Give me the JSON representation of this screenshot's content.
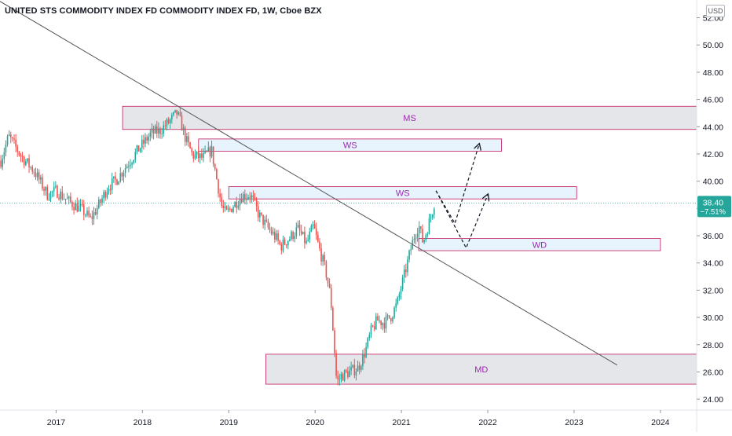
{
  "header": {
    "title": "UNITED STS COMMODITY INDEX FD COMMODITY INDEX FD, 1W, Cboe BZX",
    "currency": "USD"
  },
  "chart_data": {
    "type": "candlestick",
    "interval": "1W",
    "exchange": "Cboe BZX",
    "xlabels": [
      "2017",
      "2018",
      "2019",
      "2020",
      "2021",
      "2022",
      "2023",
      "2024"
    ],
    "ylabels": [
      "24.00",
      "26.00",
      "28.00",
      "30.00",
      "32.00",
      "34.00",
      "36.00",
      "38.00",
      "40.00",
      "42.00",
      "44.00",
      "46.00",
      "48.00",
      "50.00",
      "52.00"
    ],
    "ylim": [
      23.2,
      53.3
    ],
    "xlim": [
      2016.35,
      2024.42
    ],
    "last_price": {
      "value": 38.4,
      "label": "38.40",
      "change": "−7.51%"
    },
    "series": [
      {
        "price_path": [
          [
            2016.36,
            41.5
          ],
          [
            2016.45,
            43.3
          ],
          [
            2016.6,
            41.8
          ],
          [
            2016.75,
            40.7
          ],
          [
            2016.9,
            39.0
          ],
          [
            2017.0,
            39.3
          ],
          [
            2017.15,
            38.5
          ],
          [
            2017.3,
            37.9
          ],
          [
            2017.4,
            37.2
          ],
          [
            2017.5,
            38.3
          ],
          [
            2017.6,
            39.6
          ],
          [
            2017.7,
            40.1
          ],
          [
            2017.8,
            41.0
          ],
          [
            2017.95,
            42.3
          ],
          [
            2018.1,
            43.5
          ],
          [
            2018.2,
            43.7
          ],
          [
            2018.3,
            44.3
          ],
          [
            2018.4,
            45.0
          ],
          [
            2018.45,
            44.2
          ],
          [
            2018.5,
            43.1
          ],
          [
            2018.58,
            41.9
          ],
          [
            2018.7,
            41.7
          ],
          [
            2018.8,
            42.3
          ],
          [
            2018.85,
            40.5
          ],
          [
            2018.92,
            38.1
          ],
          [
            2018.97,
            37.6
          ],
          [
            2019.05,
            38.2
          ],
          [
            2019.15,
            38.9
          ],
          [
            2019.25,
            39.0
          ],
          [
            2019.3,
            38.3
          ],
          [
            2019.35,
            37.5
          ],
          [
            2019.45,
            36.6
          ],
          [
            2019.55,
            35.8
          ],
          [
            2019.6,
            35.2
          ],
          [
            2019.7,
            35.8
          ],
          [
            2019.8,
            36.5
          ],
          [
            2019.9,
            35.4
          ],
          [
            2019.98,
            36.7
          ],
          [
            2020.05,
            35.0
          ],
          [
            2020.12,
            33.5
          ],
          [
            2020.18,
            31.5
          ],
          [
            2020.22,
            28.0
          ],
          [
            2020.25,
            25.2
          ],
          [
            2020.3,
            25.7
          ],
          [
            2020.4,
            26.0
          ],
          [
            2020.5,
            26.3
          ],
          [
            2020.58,
            27.5
          ],
          [
            2020.65,
            29.0
          ],
          [
            2020.72,
            29.8
          ],
          [
            2020.8,
            29.6
          ],
          [
            2020.88,
            30.1
          ],
          [
            2020.95,
            31.0
          ],
          [
            2021.0,
            32.3
          ],
          [
            2021.05,
            33.5
          ],
          [
            2021.1,
            34.8
          ],
          [
            2021.15,
            36.0
          ],
          [
            2021.2,
            36.8
          ],
          [
            2021.25,
            35.5
          ],
          [
            2021.3,
            36.5
          ],
          [
            2021.35,
            37.6
          ],
          [
            2021.38,
            38.4
          ]
        ]
      }
    ],
    "trendline": {
      "from": [
        2016.35,
        53.2
      ],
      "to": [
        2023.5,
        26.5
      ]
    },
    "zones": [
      {
        "label": "MS",
        "x1": 2017.77,
        "x2": 2024.42,
        "y1": 43.8,
        "y2": 45.5,
        "fill": "#e1e2e6",
        "stroke": "#c2185b"
      },
      {
        "label": "WS",
        "x1": 2018.65,
        "x2": 2022.16,
        "y1": 42.2,
        "y2": 43.1,
        "fill": "#e3f2fd",
        "stroke": "#c2185b"
      },
      {
        "label": "WS",
        "x1": 2019.0,
        "x2": 2023.03,
        "y1": 38.7,
        "y2": 39.6,
        "fill": "#e3f2fd",
        "stroke": "#c2185b"
      },
      {
        "label": "WD",
        "x1": 2021.2,
        "x2": 2024.0,
        "y1": 34.9,
        "y2": 35.8,
        "fill": "#e3f2fd",
        "stroke": "#c2185b"
      },
      {
        "label": "MD",
        "x1": 2019.43,
        "x2": 2024.42,
        "y1": 25.1,
        "y2": 27.3,
        "fill": "#e1e2e6",
        "stroke": "#c2185b"
      }
    ],
    "projections": [
      [
        [
          2021.4,
          39.3
        ],
        [
          2021.75,
          35.1
        ],
        [
          2022.0,
          39.0
        ]
      ],
      [
        [
          2021.4,
          39.3
        ],
        [
          2021.62,
          36.9
        ],
        [
          2021.9,
          42.7
        ]
      ]
    ],
    "grid": false,
    "colors": {
      "up": "#26a69a",
      "down": "#ef5350",
      "trendline": "#555555",
      "zone_label": "#9c27b0",
      "price_line": "#26a69a"
    }
  }
}
